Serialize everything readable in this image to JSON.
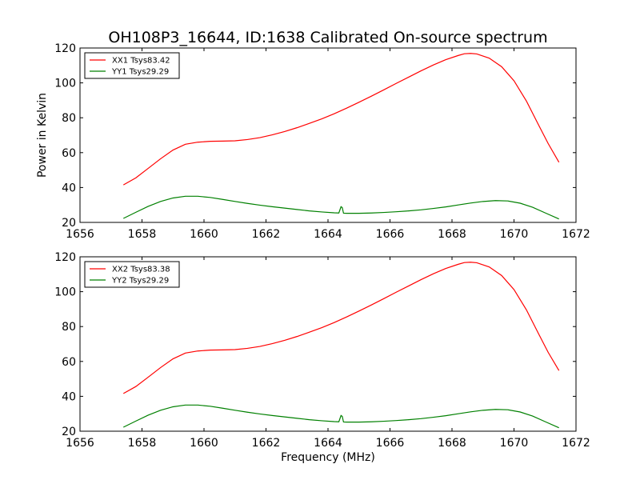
{
  "figure": {
    "title": "OH108P3_16644, ID:1638 Calibrated On-source spectrum",
    "xlabel": "Frequency (MHz)",
    "ylabel": "Power in Kelvin"
  },
  "colors": {
    "xx": "#ff0000",
    "yy": "#008000"
  },
  "chart_data": [
    {
      "type": "line",
      "xlim": [
        1656,
        1672
      ],
      "ylim": [
        20,
        120
      ],
      "xticks": [
        1656,
        1658,
        1660,
        1662,
        1664,
        1666,
        1668,
        1670,
        1672
      ],
      "yticks": [
        20,
        40,
        60,
        80,
        100,
        120
      ],
      "legend": "top-left",
      "grid": false,
      "series": [
        {
          "name": "XX1 Tsys83.42",
          "color": "#ff0000",
          "x": [
            1657.4,
            1657.8,
            1658.2,
            1658.6,
            1659.0,
            1659.4,
            1659.8,
            1660.2,
            1660.6,
            1661.0,
            1661.4,
            1661.8,
            1662.2,
            1662.6,
            1663.0,
            1663.4,
            1663.8,
            1664.2,
            1664.6,
            1665.0,
            1665.4,
            1665.8,
            1666.2,
            1666.6,
            1667.0,
            1667.4,
            1667.8,
            1668.2,
            1668.4,
            1668.6,
            1668.8,
            1669.2,
            1669.6,
            1670.0,
            1670.4,
            1670.8,
            1671.1,
            1671.45
          ],
          "y": [
            41.5,
            45.5,
            51,
            56.5,
            61.5,
            64.8,
            66,
            66.5,
            66.6,
            66.8,
            67.5,
            68.6,
            70.2,
            72.1,
            74.3,
            76.8,
            79.4,
            82.3,
            85.5,
            88.9,
            92.4,
            96,
            99.7,
            103.3,
            106.9,
            110.3,
            113.3,
            115.7,
            116.7,
            116.9,
            116.6,
            114.2,
            109.3,
            101.2,
            89.6,
            75.6,
            65.3,
            54.5
          ]
        },
        {
          "name": "YY1 Tsys29.29",
          "color": "#008000",
          "x": [
            1657.4,
            1657.8,
            1658.2,
            1658.6,
            1659.0,
            1659.4,
            1659.8,
            1660.2,
            1660.6,
            1661.0,
            1661.4,
            1661.8,
            1662.2,
            1662.6,
            1663.0,
            1663.4,
            1663.8,
            1664.2,
            1664.35,
            1664.42,
            1664.46,
            1664.5,
            1664.6,
            1665.0,
            1665.4,
            1665.8,
            1666.2,
            1666.6,
            1667.0,
            1667.4,
            1667.8,
            1668.2,
            1668.6,
            1669.0,
            1669.4,
            1669.8,
            1670.2,
            1670.6,
            1671.0,
            1671.45
          ],
          "y": [
            22.3,
            25.8,
            29.2,
            32,
            34,
            35,
            35,
            34.3,
            33.2,
            32,
            30.9,
            29.9,
            29,
            28.2,
            27.4,
            26.6,
            26,
            25.5,
            25.4,
            29,
            28.5,
            25.3,
            25.2,
            25.2,
            25.4,
            25.7,
            26.1,
            26.6,
            27.2,
            28,
            28.9,
            30,
            31.1,
            32,
            32.5,
            32.3,
            31,
            28.7,
            25.5,
            22
          ]
        }
      ]
    },
    {
      "type": "line",
      "xlim": [
        1656,
        1672
      ],
      "ylim": [
        20,
        120
      ],
      "xticks": [
        1656,
        1658,
        1660,
        1662,
        1664,
        1666,
        1668,
        1670,
        1672
      ],
      "yticks": [
        20,
        40,
        60,
        80,
        100,
        120
      ],
      "legend": "top-left",
      "grid": false,
      "series": [
        {
          "name": "XX2 Tsys83.38",
          "color": "#ff0000",
          "x": [
            1657.4,
            1657.8,
            1658.2,
            1658.6,
            1659.0,
            1659.4,
            1659.8,
            1660.2,
            1660.6,
            1661.0,
            1661.4,
            1661.8,
            1662.2,
            1662.6,
            1663.0,
            1663.4,
            1663.8,
            1664.2,
            1664.6,
            1665.0,
            1665.4,
            1665.8,
            1666.2,
            1666.6,
            1667.0,
            1667.4,
            1667.8,
            1668.2,
            1668.4,
            1668.6,
            1668.8,
            1669.2,
            1669.6,
            1670.0,
            1670.4,
            1670.8,
            1671.1,
            1671.45
          ],
          "y": [
            41.6,
            45.6,
            51,
            56.5,
            61.5,
            64.8,
            66,
            66.5,
            66.6,
            66.8,
            67.5,
            68.6,
            70.2,
            72.1,
            74.3,
            76.8,
            79.4,
            82.3,
            85.5,
            88.9,
            92.4,
            96,
            99.7,
            103.3,
            106.9,
            110.3,
            113.3,
            115.7,
            116.7,
            116.9,
            116.6,
            114.2,
            109.3,
            101.2,
            89.6,
            75.6,
            65.3,
            54.8
          ]
        },
        {
          "name": "YY2 Tsys29.29",
          "color": "#008000",
          "x": [
            1657.4,
            1657.8,
            1658.2,
            1658.6,
            1659.0,
            1659.4,
            1659.8,
            1660.2,
            1660.6,
            1661.0,
            1661.4,
            1661.8,
            1662.2,
            1662.6,
            1663.0,
            1663.4,
            1663.8,
            1664.2,
            1664.35,
            1664.42,
            1664.46,
            1664.5,
            1664.6,
            1665.0,
            1665.4,
            1665.8,
            1666.2,
            1666.6,
            1667.0,
            1667.4,
            1667.8,
            1668.2,
            1668.6,
            1669.0,
            1669.4,
            1669.8,
            1670.2,
            1670.6,
            1671.0,
            1671.45
          ],
          "y": [
            22.3,
            25.8,
            29.2,
            32,
            34,
            35,
            35,
            34.3,
            33.2,
            32,
            30.9,
            29.9,
            29,
            28.2,
            27.4,
            26.6,
            26,
            25.5,
            25.4,
            29,
            28.5,
            25.3,
            25.2,
            25.2,
            25.4,
            25.7,
            26.1,
            26.6,
            27.2,
            28,
            28.9,
            30,
            31.1,
            32,
            32.5,
            32.3,
            31,
            28.7,
            25.5,
            22
          ]
        }
      ]
    }
  ]
}
